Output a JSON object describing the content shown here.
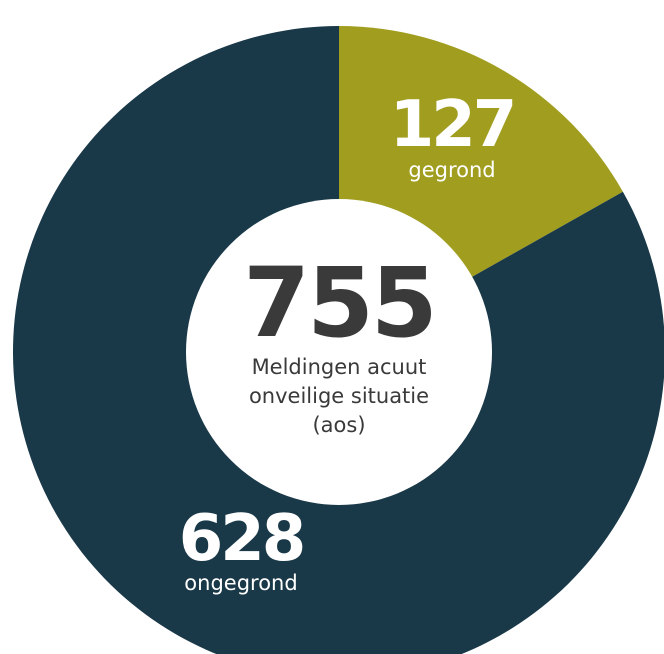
{
  "chart_data": {
    "type": "pie",
    "variant": "donut",
    "total": 755,
    "center_label_lines": [
      "Meldingen acuut",
      "onveilige situatie",
      "(aos)"
    ],
    "slices": [
      {
        "label": "gegrond",
        "value": 127,
        "color": "#a09d1f"
      },
      {
        "label": "ongegrond",
        "value": 628,
        "color": "#193848"
      }
    ]
  }
}
